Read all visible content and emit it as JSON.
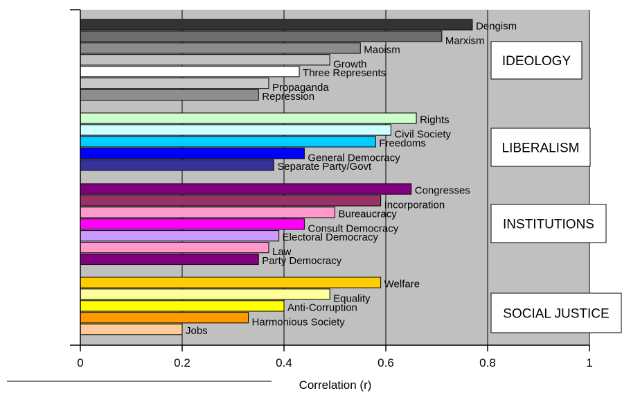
{
  "chart_data": {
    "type": "bar",
    "orientation": "horizontal",
    "xlabel": "Correlation (r)",
    "xlim": [
      0,
      1
    ],
    "xticks": [
      0,
      0.2,
      0.4,
      0.6,
      0.8,
      1
    ],
    "xtick_labels": [
      "0",
      "0.2",
      "0.4",
      "0.6",
      "0.8",
      "1"
    ],
    "grid": true,
    "plot_background": "#c0c0c0",
    "groups": [
      {
        "name": "IDEOLOGY",
        "bars": [
          {
            "label": "Dengism",
            "value": 0.77,
            "color": "#333333"
          },
          {
            "label": "Marxism",
            "value": 0.71,
            "color": "#6e6e6e"
          },
          {
            "label": "Maoism",
            "value": 0.55,
            "color": "#8c8c8c"
          },
          {
            "label": "Growth",
            "value": 0.49,
            "color": "#c2c2c2"
          },
          {
            "label": "Three Represents",
            "value": 0.43,
            "color": "#ffffff"
          },
          {
            "label": "Propaganda",
            "value": 0.37,
            "color": "#c8c8c8"
          },
          {
            "label": "Repression",
            "value": 0.35,
            "color": "#8e8e8e"
          }
        ]
      },
      {
        "name": "LIBERALISM",
        "bars": [
          {
            "label": "Rights",
            "value": 0.66,
            "color": "#ccffcc"
          },
          {
            "label": "Civil Society",
            "value": 0.61,
            "color": "#ccffff"
          },
          {
            "label": "Freedoms",
            "value": 0.58,
            "color": "#00ccff"
          },
          {
            "label": "General Democracy",
            "value": 0.44,
            "color": "#0000ff"
          },
          {
            "label": "Separate Party/Govt",
            "value": 0.38,
            "color": "#333399"
          }
        ]
      },
      {
        "name": "INSTITUTIONS",
        "bars": [
          {
            "label": "Congresses",
            "value": 0.65,
            "color": "#800080"
          },
          {
            "label": "Incorporation",
            "value": 0.59,
            "color": "#993366"
          },
          {
            "label": "Bureaucracy",
            "value": 0.5,
            "color": "#ff99cc"
          },
          {
            "label": "Consult Democracy",
            "value": 0.44,
            "color": "#ff00ff"
          },
          {
            "label": "Electoral Democracy",
            "value": 0.39,
            "color": "#cc99ff"
          },
          {
            "label": "Law",
            "value": 0.37,
            "color": "#ff99cc"
          },
          {
            "label": "Party Democracy",
            "value": 0.35,
            "color": "#800080"
          }
        ]
      },
      {
        "name": "SOCIAL JUSTICE",
        "bars": [
          {
            "label": "Welfare",
            "value": 0.59,
            "color": "#ffcc00"
          },
          {
            "label": "Equality",
            "value": 0.49,
            "color": "#ffff99"
          },
          {
            "label": "Anti-Corruption",
            "value": 0.4,
            "color": "#ffff00"
          },
          {
            "label": "Harmonious Society",
            "value": 0.33,
            "color": "#ff9900"
          },
          {
            "label": "Jobs",
            "value": 0.2,
            "color": "#ffcc99"
          }
        ]
      }
    ]
  }
}
